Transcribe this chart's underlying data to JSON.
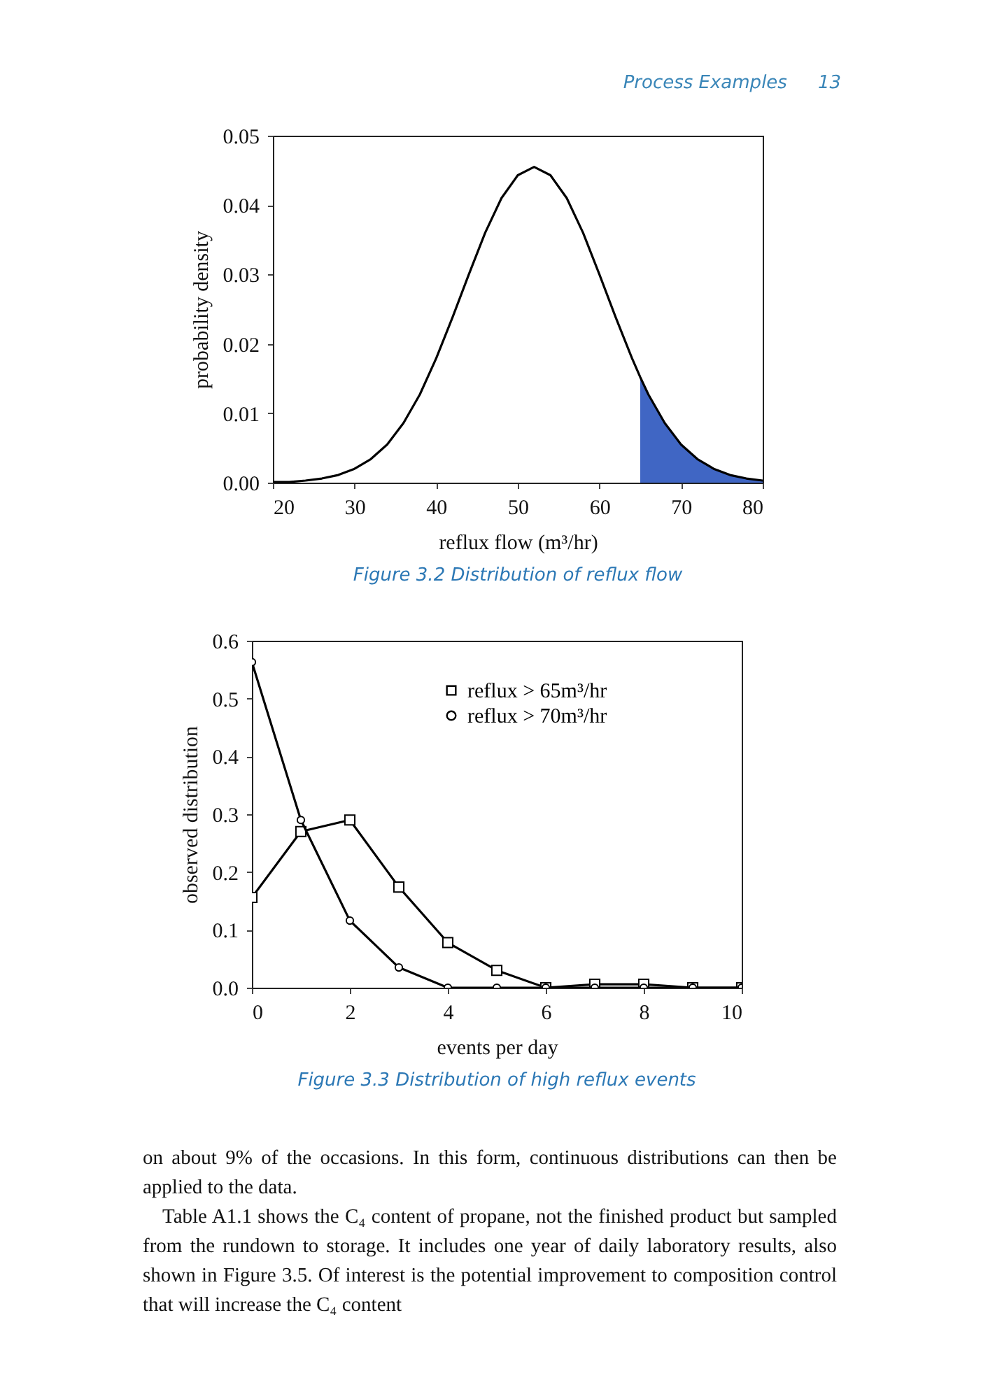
{
  "chart_data": [
    {
      "type": "line",
      "title": "Figure 3.2    Distribution of reflux flow",
      "xlabel": "reflux flow (m³/hr)",
      "ylabel": "probability density",
      "annotations": [
        "Process Examples",
        "13"
      ],
      "series": [
        {
          "type": "area",
          "color": "#4066c4",
          "x": [
            65,
            66,
            68,
            70,
            72,
            74,
            76,
            78,
            80
          ],
          "values": [
            0.0152,
            0.0127,
            0.0086,
            0.0055,
            0.0034,
            0.002,
            0.0011,
            0.0006,
            0.0003
          ]
        },
        {
          "color": "#000000",
          "x": [
            20,
            22,
            24,
            26,
            28,
            30,
            32,
            34,
            36,
            38,
            40,
            42,
            44,
            46,
            48,
            50,
            52,
            54,
            56,
            58,
            60,
            62,
            64,
            65,
            66,
            68,
            70,
            72,
            74,
            76,
            78,
            80
          ],
          "values": [
            0.0001,
            0.0001,
            0.0003,
            0.0006,
            0.0011,
            0.002,
            0.0034,
            0.0055,
            0.0086,
            0.0127,
            0.0179,
            0.0238,
            0.03,
            0.036,
            0.041,
            0.0443,
            0.0455,
            0.0443,
            0.041,
            0.036,
            0.03,
            0.0238,
            0.0179,
            0.0152,
            0.0127,
            0.0086,
            0.0055,
            0.0034,
            0.002,
            0.0011,
            0.0006,
            0.0003
          ]
        }
      ],
      "xlim": [
        20,
        80
      ],
      "xticks": [
        20,
        30,
        40,
        50,
        60,
        70,
        80
      ],
      "ylim": [
        0,
        0.05
      ],
      "yticks": [
        {
          "value": 0,
          "label": "0.00"
        },
        {
          "value": 0.01,
          "label": "0.01"
        },
        {
          "value": 0.02,
          "label": "0.02"
        },
        {
          "value": 0.03,
          "label": "0.03"
        },
        {
          "value": 0.04,
          "label": "0.04"
        },
        {
          "value": 0.05,
          "label": "0.05"
        }
      ],
      "grid": false,
      "legend": false
    },
    {
      "type": "line",
      "title": "Figure 3.3    Distribution of high reflux events",
      "xlabel": "events per day",
      "ylabel": "observed distribution",
      "annotations": [
        "on about 9% of the occasions. In this form, continuous distributions can then be applied to the data.",
        "Table A1.1 shows the C₄ content of propane, not the finished product but sampled from the rundown to storage. It includes one year of daily laboratory results, also shown in Figure 3.5. Of interest is the potential improvement to composition control that will increase the C₄ content"
      ],
      "x": [
        0,
        1,
        2,
        3,
        4,
        5,
        6,
        7,
        8,
        9,
        10
      ],
      "series": [
        {
          "name": "reflux > 65m³/hr",
          "color": "#000000",
          "marker": "square",
          "values": [
            0.156,
            0.27,
            0.29,
            0.174,
            0.078,
            0.03,
            0,
            0.006,
            0.006,
            0,
            0
          ]
        },
        {
          "name": "reflux > 70m³/hr",
          "color": "#000000",
          "marker": "circle",
          "values": [
            0.563,
            0.29,
            0.116,
            0.035,
            0,
            0,
            0,
            0,
            0,
            0,
            0
          ]
        }
      ],
      "xlim": [
        0,
        10
      ],
      "xticks": [
        0,
        2,
        4,
        6,
        8,
        10
      ],
      "ylim": [
        0,
        0.6
      ],
      "yticks": [
        {
          "value": 0,
          "label": "0.0"
        },
        {
          "value": 0.1,
          "label": "0.1"
        },
        {
          "value": 0.2,
          "label": "0.2"
        },
        {
          "value": 0.3,
          "label": "0.3"
        },
        {
          "value": 0.4,
          "label": "0.4"
        },
        {
          "value": 0.5,
          "label": "0.5"
        },
        {
          "value": 0.6,
          "label": "0.6"
        }
      ],
      "grid": false,
      "legend": "top right"
    }
  ]
}
